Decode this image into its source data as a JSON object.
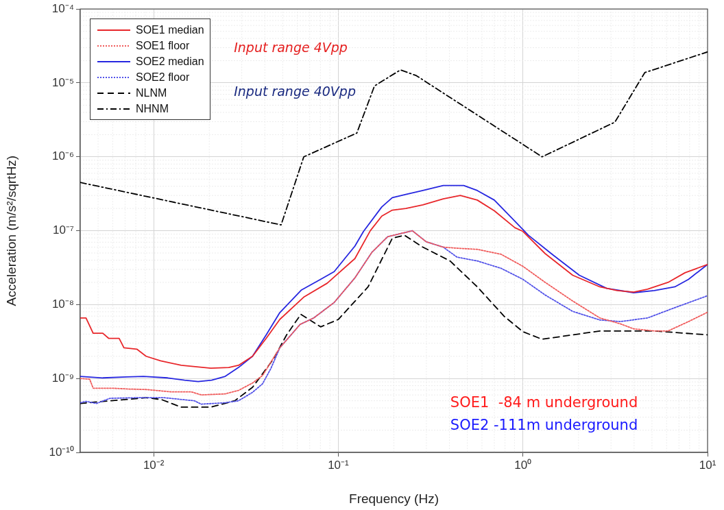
{
  "chart_data": {
    "type": "line",
    "xlabel": "Frequency (Hz)",
    "ylabel": "Acceleration (m/s²/sqrtHz)",
    "log": "xy",
    "grid": true,
    "legend": "top left",
    "marker": "none",
    "xlim": [
      0.004,
      10
    ],
    "xticks": [
      {
        "value": 0.01,
        "label": "10⁻²"
      },
      {
        "value": 0.1,
        "label": "10⁻¹"
      },
      {
        "value": 1,
        "label": "10⁰"
      },
      {
        "value": 10,
        "label": "10¹"
      }
    ],
    "ylim": [
      1e-10,
      0.0001
    ],
    "yticks": [
      {
        "value": 1e-10,
        "label": "10⁻¹⁰"
      },
      {
        "value": 1e-09,
        "label": "10⁻⁹"
      },
      {
        "value": 1e-08,
        "label": "10⁻⁸"
      },
      {
        "value": 1e-07,
        "label": "10⁻⁷"
      },
      {
        "value": 1e-06,
        "label": "10⁻⁶"
      },
      {
        "value": 1e-05,
        "label": "10⁻⁵"
      },
      {
        "value": 0.0001,
        "label": "10⁻⁴"
      }
    ],
    "annotations": [
      "Input range 4Vpp",
      "Input range 40Vpp",
      "SOE1  -84 m underground",
      "SOE2 -111m underground"
    ],
    "series": [
      {
        "name": "SOE1 median",
        "color": "#e8262a",
        "line_style": "solid",
        "x": [
          0.004,
          0.0043,
          0.0047,
          0.0053,
          0.0057,
          0.0065,
          0.0069,
          0.0081,
          0.0091,
          0.0109,
          0.0141,
          0.0204,
          0.0255,
          0.0288,
          0.0343,
          0.0407,
          0.0482,
          0.0649,
          0.0871,
          0.123,
          0.149,
          0.172,
          0.196,
          0.232,
          0.287,
          0.37,
          0.458,
          0.566,
          0.7,
          0.904,
          1,
          1.32,
          1.86,
          2.61,
          3.24,
          3.98,
          4.73,
          6.11,
          7.55,
          10
        ],
        "values": [
          6.6e-09,
          6.6e-09,
          4.1e-09,
          4.1e-09,
          3.5e-09,
          3.5e-09,
          2.6e-09,
          2.5e-09,
          2e-09,
          1.74e-09,
          1.51e-09,
          1.38e-09,
          1.41e-09,
          1.51e-09,
          2e-09,
          3.5e-09,
          6.3e-09,
          1.26e-08,
          1.95e-08,
          4.2e-08,
          1e-07,
          1.58e-07,
          1.9e-07,
          2e-07,
          2.24e-07,
          2.7e-07,
          3e-07,
          2.6e-07,
          1.86e-07,
          1.1e-07,
          9.8e-08,
          4.9e-08,
          2.5e-08,
          1.74e-08,
          1.55e-08,
          1.48e-08,
          1.62e-08,
          2e-08,
          2.7e-08,
          3.5e-08
        ]
      },
      {
        "name": "SOE1 floor",
        "color": "#f05a5a",
        "line_style": "dotted",
        "x": [
          0.004,
          0.0045,
          0.0047,
          0.006,
          0.0074,
          0.0091,
          0.0124,
          0.016,
          0.0181,
          0.0244,
          0.0288,
          0.0343,
          0.0389,
          0.0482,
          0.0621,
          0.0736,
          0.095,
          0.123,
          0.152,
          0.185,
          0.252,
          0.299,
          0.37,
          0.439,
          0.566,
          0.762,
          1,
          1.32,
          1.86,
          2.61,
          3.37,
          3.98,
          5.15,
          6.11,
          7.89,
          10
        ],
        "values": [
          1e-09,
          9.8e-10,
          7.4e-10,
          7.4e-10,
          7.2e-10,
          7.1e-10,
          6.6e-10,
          6.6e-10,
          6e-10,
          6.2e-10,
          6.9e-10,
          8.7e-10,
          1.1e-09,
          2.6e-09,
          5.4e-09,
          6.6e-09,
          1.07e-08,
          2.3e-08,
          5.1e-08,
          8.3e-08,
          1e-07,
          7.1e-08,
          6e-08,
          5.8e-08,
          5.6e-08,
          4.8e-08,
          3.3e-08,
          2e-08,
          1.12e-08,
          6.6e-09,
          5.5e-09,
          4.7e-09,
          4.4e-09,
          4.4e-09,
          5.9e-09,
          7.9e-09
        ]
      },
      {
        "name": "SOE2 median",
        "color": "#2626e0",
        "line_style": "solid",
        "x": [
          0.004,
          0.0053,
          0.0071,
          0.0088,
          0.0119,
          0.0147,
          0.0174,
          0.0206,
          0.0244,
          0.0288,
          0.0343,
          0.0407,
          0.0482,
          0.0632,
          0.0802,
          0.095,
          0.123,
          0.137,
          0.172,
          0.196,
          0.232,
          0.287,
          0.37,
          0.478,
          0.566,
          0.7,
          0.904,
          1.07,
          1.44,
          2.02,
          2.84,
          3.98,
          5.15,
          6.65,
          7.89,
          10
        ],
        "values": [
          1.07e-09,
          1.02e-09,
          1.05e-09,
          1.07e-09,
          1.02e-09,
          9.5e-10,
          9.1e-10,
          9.5e-10,
          1.07e-09,
          1.41e-09,
          2e-09,
          3.9e-09,
          7.8e-09,
          1.58e-08,
          2.2e-08,
          2.8e-08,
          6.2e-08,
          9.8e-08,
          2.1e-07,
          2.8e-07,
          3.1e-07,
          3.5e-07,
          4.1e-07,
          4.1e-07,
          3.5e-07,
          2.6e-07,
          1.35e-07,
          8.7e-08,
          4.8e-08,
          2.5e-08,
          1.66e-08,
          1.45e-08,
          1.55e-08,
          1.74e-08,
          2.2e-08,
          3.5e-08
        ]
      },
      {
        "name": "SOE2 floor",
        "color": "#5050e8",
        "line_style": "dotted",
        "x": [
          0.004,
          0.0043,
          0.0049,
          0.0058,
          0.0081,
          0.0114,
          0.0166,
          0.0181,
          0.0244,
          0.0288,
          0.0343,
          0.0389,
          0.0432,
          0.0482,
          0.0621,
          0.0736,
          0.095,
          0.123,
          0.152,
          0.185,
          0.252,
          0.299,
          0.37,
          0.439,
          0.566,
          0.762,
          1,
          1.32,
          1.86,
          2.61,
          3.37,
          4.73,
          6.65,
          10
        ],
        "values": [
          4.7e-10,
          4.9e-10,
          4.6e-10,
          5.4e-10,
          5.5e-10,
          5.5e-10,
          5e-10,
          4.5e-10,
          4.7e-10,
          5e-10,
          6.5e-10,
          8.5e-10,
          1.38e-09,
          2.6e-09,
          5.4e-09,
          6.6e-09,
          1.07e-08,
          2.3e-08,
          5.1e-08,
          8.3e-08,
          1e-07,
          7.1e-08,
          6e-08,
          4.4e-08,
          3.9e-08,
          3.1e-08,
          2.2e-08,
          1.35e-08,
          8.1e-09,
          6.2e-09,
          5.9e-09,
          6.6e-09,
          9.1e-09,
          1.32e-08
        ]
      },
      {
        "name": "NLNM",
        "color": "#000000",
        "line_style": "dashed",
        "x": [
          0.004,
          0.0091,
          0.011,
          0.0141,
          0.0204,
          0.0275,
          0.0343,
          0.0443,
          0.0525,
          0.0627,
          0.0802,
          0.1,
          0.145,
          0.196,
          0.228,
          0.287,
          0.403,
          0.566,
          0.794,
          1,
          1.27,
          2.61,
          5.15,
          10
        ],
        "values": [
          4.6e-10,
          5.5e-10,
          5.2e-10,
          4.1e-10,
          4.1e-10,
          5e-10,
          7.6e-10,
          1.8e-09,
          3.9e-09,
          7.4e-09,
          5e-09,
          6.3e-09,
          1.74e-08,
          7.9e-08,
          8.7e-08,
          6e-08,
          3.9e-08,
          1.74e-08,
          6.9e-09,
          4.3e-09,
          3.4e-09,
          4.4e-09,
          4.4e-09,
          3.9e-09
        ]
      },
      {
        "name": "NHNM",
        "color": "#000000",
        "line_style": "dashdot",
        "x": [
          0.004,
          0.049,
          0.065,
          0.126,
          0.157,
          0.217,
          0.264,
          1.27,
          3.15,
          4.57,
          10
        ],
        "values": [
          4.5e-07,
          1.2e-07,
          1e-06,
          2.1e-06,
          9.1e-06,
          1.5e-05,
          1.26e-05,
          1e-06,
          2.95e-06,
          1.38e-05,
          2.63e-05
        ]
      }
    ]
  }
}
